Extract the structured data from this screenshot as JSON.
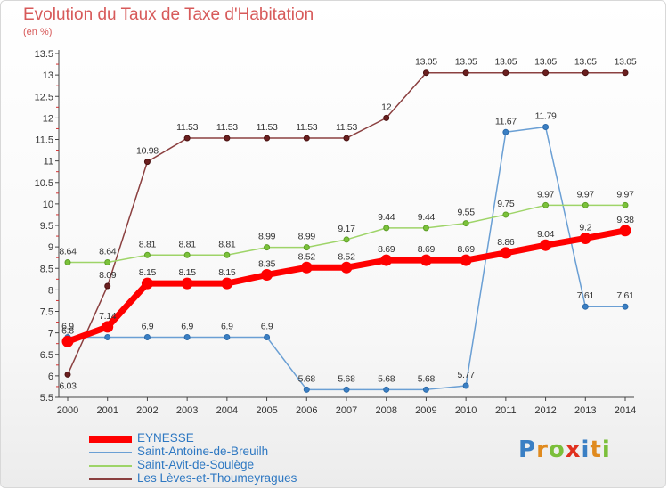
{
  "title": "Evolution du Taux de Taxe d'Habitation",
  "unit_label": "(en %)",
  "logo_text": "Proxiti",
  "logo_colors": [
    "#3a7fc4",
    "#e08a1e",
    "#7bbf3a",
    "#e0301e",
    "#3a7fc4",
    "#e08a1e",
    "#7bbf3a"
  ],
  "chart_data": {
    "type": "line",
    "title": "Evolution du Taux de Taxe d'Habitation",
    "ylabel": "(en %)",
    "x": [
      "2000",
      "2001",
      "2002",
      "2003",
      "2004",
      "2005",
      "2006",
      "2007",
      "2008",
      "2009",
      "2010",
      "2011",
      "2012",
      "2013",
      "2014"
    ],
    "ylim": [
      5.5,
      13.5
    ],
    "yticks": [
      "5.5",
      "6",
      "6.5",
      "7",
      "7.5",
      "8",
      "8.5",
      "9",
      "9.5",
      "10",
      "10.5",
      "11",
      "11.5",
      "12",
      "12.5",
      "13",
      "13.5"
    ],
    "grid": false,
    "legend_position": "bottom-left",
    "series": [
      {
        "name": "EYNESSE",
        "color": "#ff0000",
        "values": [
          6.8,
          7.14,
          8.15,
          8.15,
          8.15,
          8.35,
          8.52,
          8.52,
          8.69,
          8.69,
          8.69,
          8.86,
          9.04,
          9.2,
          9.38
        ],
        "labels": [
          "6.8",
          "7.14",
          "8.15",
          "8.15",
          "8.15",
          "8.35",
          "8.52",
          "8.52",
          "8.69",
          "8.69",
          "8.69",
          "8.86",
          "9.04",
          "9.2",
          "9.38"
        ]
      },
      {
        "name": "Saint-Antoine-de-Breuilh",
        "color": "#6a9fd4",
        "values": [
          6.9,
          6.9,
          6.9,
          6.9,
          6.9,
          6.9,
          5.68,
          5.68,
          5.68,
          5.68,
          5.77,
          11.67,
          11.79,
          7.61,
          7.61
        ],
        "labels": [
          "6.9",
          "",
          "6.9",
          "6.9",
          "6.9",
          "6.9",
          "5.68",
          "5.68",
          "5.68",
          "5.68",
          "5.77",
          "11.67",
          "11.79",
          "7.61",
          "7.61"
        ]
      },
      {
        "name": "Saint-Avit-de-Soulège",
        "color": "#9ed468",
        "values": [
          8.64,
          8.64,
          8.81,
          8.81,
          8.81,
          8.99,
          8.99,
          9.17,
          9.44,
          9.44,
          9.55,
          9.75,
          9.97,
          9.97,
          9.97
        ],
        "labels": [
          "8.64",
          "8.64",
          "8.81",
          "8.81",
          "8.81",
          "8.99",
          "8.99",
          "9.17",
          "9.44",
          "9.44",
          "9.55",
          "9.75",
          "9.97",
          "9.97",
          "9.97"
        ]
      },
      {
        "name": "Les Lèves-et-Thoumeyragues",
        "color": "#8b4040",
        "values": [
          6.03,
          8.09,
          10.98,
          11.53,
          11.53,
          11.53,
          11.53,
          11.53,
          12,
          13.05,
          13.05,
          13.05,
          13.05,
          13.05,
          13.05
        ],
        "labels": [
          "6.03",
          "8.09",
          "10.98",
          "11.53",
          "11.53",
          "11.53",
          "11.53",
          "11.53",
          "12",
          "13.05",
          "13.05",
          "13.05",
          "13.05",
          "13.05",
          "13.05"
        ]
      }
    ]
  }
}
